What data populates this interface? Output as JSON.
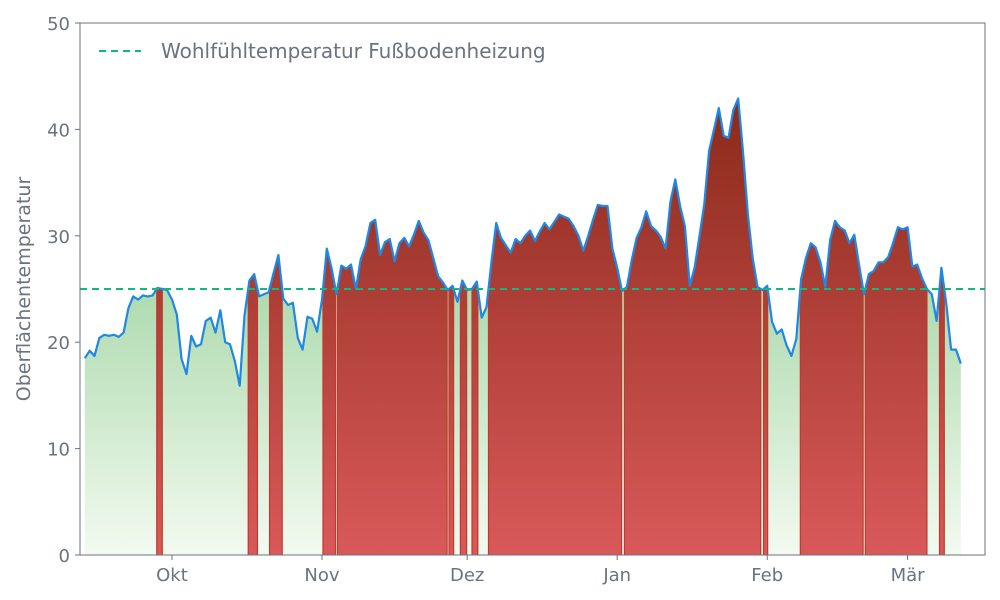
{
  "chart_data": {
    "type": "area",
    "ylabel": "Oberflächentemperatur",
    "xlabel": "",
    "ylim": [
      0,
      50
    ],
    "yticks": [
      0,
      10,
      20,
      30,
      40,
      50
    ],
    "x_start": "2023-09-12",
    "x_end": "2024-03-17",
    "xticks": [
      {
        "date": "2023-10-01",
        "label": "Okt"
      },
      {
        "date": "2023-11-01",
        "label": "Nov"
      },
      {
        "date": "2023-12-01",
        "label": "Dez"
      },
      {
        "date": "2024-01-01",
        "label": "Jan"
      },
      {
        "date": "2024-02-01",
        "label": "Feb"
      },
      {
        "date": "2024-03-01",
        "label": "Mär"
      }
    ],
    "threshold": {
      "value": 25,
      "label": "Wohlfühltemperatur Fußbodenheizung",
      "color": "#10b981"
    },
    "grid": false,
    "legend_position": "top-left",
    "colors": {
      "line": "#1e88e5",
      "below_fill_top": "#7cc47f",
      "below_fill_bottom": "#f3faf0",
      "above_fill_top": "#8b2a1a",
      "above_fill_bottom": "#d9595a",
      "above_edge": "#c0392b",
      "axis": "#6b7280"
    },
    "series": [
      {
        "x_start": "2023-09-13",
        "x_step_days": 1,
        "values": [
          18.5,
          19.2,
          18.7,
          20.4,
          20.7,
          20.6,
          20.7,
          20.5,
          20.9,
          23.2,
          24.3,
          24.0,
          24.4,
          24.3,
          24.4,
          25.1,
          25.0,
          24.9,
          24.0,
          22.6,
          18.4,
          17.0,
          20.6,
          19.6,
          19.8,
          22.0,
          22.3,
          20.9,
          23.0,
          20.0,
          19.8,
          18.2,
          15.9,
          22.5,
          25.8,
          26.4,
          24.3,
          24.5,
          24.7,
          26.5,
          28.2,
          24.1,
          23.5,
          23.7,
          20.4,
          19.3,
          22.4,
          22.2,
          21.0,
          24.0,
          28.8,
          26.9,
          24.5,
          27.2,
          26.9,
          27.3,
          25.0,
          27.8,
          29.0,
          31.2,
          31.5,
          28.2,
          29.4,
          29.7,
          27.6,
          29.3,
          29.8,
          29.0,
          30.1,
          31.4,
          30.3,
          29.6,
          27.9,
          26.2,
          25.6,
          24.9,
          25.3,
          23.8,
          25.8,
          24.9,
          25.0,
          25.7,
          22.3,
          23.3,
          27.5,
          31.2,
          29.8,
          29.1,
          28.4,
          29.7,
          29.3,
          30.0,
          30.5,
          29.5,
          30.4,
          31.2,
          30.6,
          31.3,
          32.0,
          31.8,
          31.6,
          30.9,
          30.0,
          28.6,
          30.0,
          31.5,
          32.9,
          32.8,
          32.8,
          28.8,
          27.0,
          24.8,
          25.2,
          27.7,
          29.8,
          30.8,
          32.3,
          30.9,
          30.5,
          29.9,
          28.8,
          33.2,
          35.3,
          32.8,
          30.9,
          25.3,
          27.0,
          30.0,
          33.0,
          38.0,
          40.0,
          42.0,
          39.4,
          39.2,
          41.8,
          42.9,
          37.9,
          32.0,
          27.9,
          25.2,
          24.9,
          25.3,
          21.9,
          20.8,
          21.2,
          19.7,
          18.7,
          20.3,
          25.9,
          27.9,
          29.3,
          28.9,
          27.5,
          25.2,
          29.6,
          31.4,
          30.8,
          30.5,
          29.3,
          30.1,
          27.2,
          24.5,
          26.4,
          26.7,
          27.5,
          27.5,
          28.0,
          29.3,
          30.8,
          30.6,
          30.8,
          27.1,
          27.3,
          26.0,
          25.0,
          24.5,
          22.0,
          27.0,
          23.6,
          19.3,
          19.3,
          18.0
        ]
      }
    ]
  }
}
